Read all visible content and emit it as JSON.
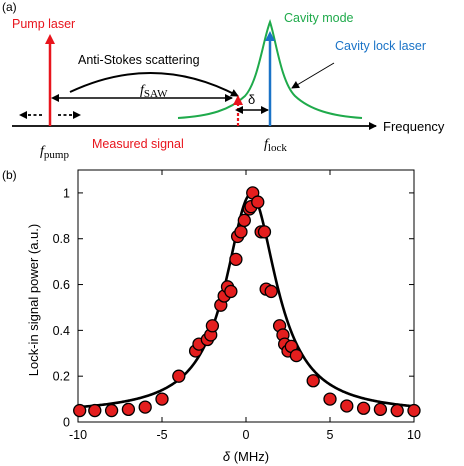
{
  "panel_a": {
    "label": "(a)",
    "pump_laser": "Pump laser",
    "anti_stokes": "Anti-Stokes scattering",
    "cavity_mode": "Cavity mode",
    "cavity_lock_laser": "Cavity lock laser",
    "frequency": "Frequency",
    "measured_signal": "Measured signal",
    "f_pump_main": "f",
    "f_pump_sub": "pump",
    "f_saw_main": "f",
    "f_saw_sub": "SAW",
    "f_lock_main": "f",
    "f_lock_sub": "lock",
    "delta": "δ",
    "colors": {
      "pump": "#e8141c",
      "cavity": "#1faa4b",
      "lock": "#1a73c7",
      "axis": "#000000"
    }
  },
  "panel_b": {
    "label": "(b)",
    "xlabel_symbol": "δ",
    "xlabel_unit": " (MHz)",
    "ylabel": "Lock-in signal power (a.u.)"
  },
  "chart_data": {
    "type": "scatter",
    "xlim": [
      -10,
      10
    ],
    "ylim": [
      0,
      1.1
    ],
    "xticks": [
      -10,
      -5,
      0,
      5,
      10
    ],
    "yticks": [
      0,
      0.2,
      0.4,
      0.6,
      0.8,
      1
    ],
    "ytick_labels": [
      "0",
      "0.2",
      "0.4",
      "0.6",
      "0.8",
      "1"
    ],
    "xtick_labels": [
      "-10",
      "-5",
      "0",
      "5",
      "10"
    ],
    "grid": false,
    "marker_color": "#e41e1e",
    "fit_color": "#000000",
    "points": [
      [
        -9.9,
        0.05
      ],
      [
        -9,
        0.05
      ],
      [
        -8,
        0.05
      ],
      [
        -7,
        0.055
      ],
      [
        -6,
        0.065
      ],
      [
        -5,
        0.1
      ],
      [
        -4,
        0.2
      ],
      [
        -3,
        0.31
      ],
      [
        -2.8,
        0.34
      ],
      [
        -2.3,
        0.36
      ],
      [
        -2.1,
        0.38
      ],
      [
        -2,
        0.42
      ],
      [
        -1.5,
        0.51
      ],
      [
        -1.3,
        0.55
      ],
      [
        -1.1,
        0.59
      ],
      [
        -0.9,
        0.57
      ],
      [
        -0.6,
        0.71
      ],
      [
        -0.5,
        0.81
      ],
      [
        -0.3,
        0.83
      ],
      [
        -0.1,
        0.88
      ],
      [
        0.2,
        0.93
      ],
      [
        0.3,
        0.94
      ],
      [
        0.4,
        1.0
      ],
      [
        0.7,
        0.96
      ],
      [
        0.9,
        0.83
      ],
      [
        1.1,
        0.83
      ],
      [
        1.2,
        0.58
      ],
      [
        1.5,
        0.57
      ],
      [
        2,
        0.42
      ],
      [
        2.2,
        0.38
      ],
      [
        2.3,
        0.34
      ],
      [
        2.5,
        0.31
      ],
      [
        2.7,
        0.33
      ],
      [
        3,
        0.29
      ],
      [
        4,
        0.18
      ],
      [
        5,
        0.1
      ],
      [
        6,
        0.07
      ],
      [
        7,
        0.06
      ],
      [
        8,
        0.055
      ],
      [
        9,
        0.05
      ],
      [
        10,
        0.05
      ]
    ],
    "fit": {
      "center": 0.3,
      "hwhm": 1.85,
      "amplitude": 0.96,
      "offset": 0.035
    }
  }
}
